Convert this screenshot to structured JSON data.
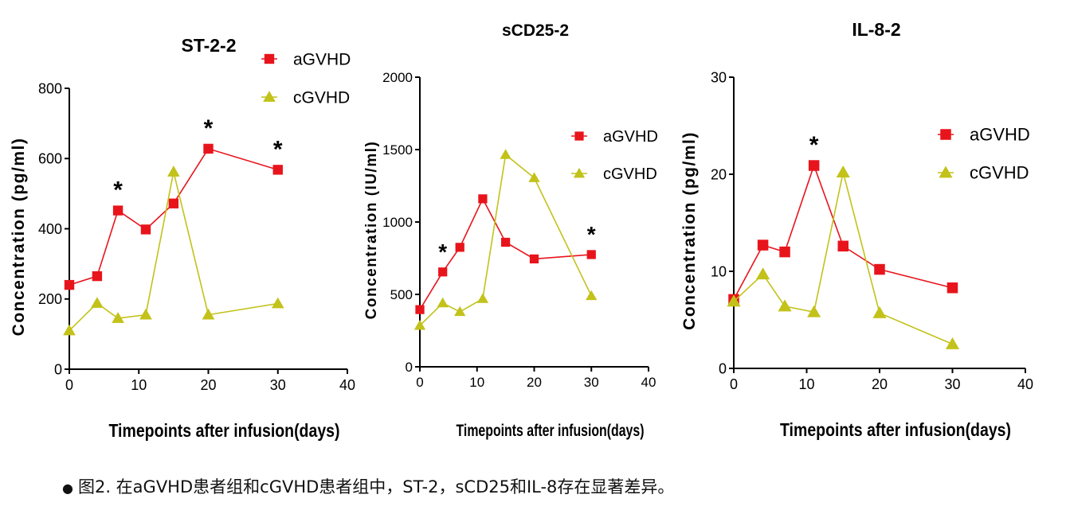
{
  "chart_data": [
    {
      "type": "line",
      "title": "ST-2-2",
      "xlabel": "Timepoints after infusion(days)",
      "ylabel": "Concentration (pg/ml)",
      "xlim": [
        0,
        40
      ],
      "ylim": [
        0,
        800
      ],
      "xticks": [
        0,
        10,
        20,
        30,
        40
      ],
      "yticks": [
        0,
        200,
        400,
        600,
        800
      ],
      "legend_position": "top-right",
      "series": [
        {
          "name": "aGVHD",
          "color": "#e8141c",
          "marker": "square",
          "x": [
            0,
            4,
            7,
            11,
            15,
            20,
            30
          ],
          "y": [
            240,
            265,
            452,
            398,
            472,
            628,
            568
          ]
        },
        {
          "name": "cGVHD",
          "color": "#c2c21a",
          "marker": "triangle",
          "x": [
            0,
            4,
            7,
            11,
            15,
            20,
            30
          ],
          "y": [
            110,
            188,
            145,
            155,
            562,
            155,
            187
          ]
        }
      ],
      "annotations": [
        {
          "text": "*",
          "x": 7,
          "y": 452
        },
        {
          "text": "*",
          "x": 20,
          "y": 628
        },
        {
          "text": "*",
          "x": 30,
          "y": 568
        }
      ]
    },
    {
      "type": "line",
      "title": "sCD25-2",
      "xlabel": "Timepoints after infusion(days)",
      "ylabel": "Concentration (IU/ml)",
      "xlim": [
        0,
        40
      ],
      "ylim": [
        0,
        2000
      ],
      "xticks": [
        0,
        10,
        20,
        30,
        40
      ],
      "yticks": [
        0,
        500,
        1000,
        1500,
        2000
      ],
      "legend_position": "right",
      "series": [
        {
          "name": "aGVHD",
          "color": "#e8141c",
          "marker": "square",
          "x": [
            0,
            4,
            7,
            11,
            15,
            20,
            30
          ],
          "y": [
            395,
            655,
            825,
            1160,
            860,
            745,
            775
          ]
        },
        {
          "name": "cGVHD",
          "color": "#c2c21a",
          "marker": "triangle",
          "x": [
            0,
            4,
            7,
            11,
            15,
            20,
            30
          ],
          "y": [
            285,
            440,
            380,
            470,
            1465,
            1305,
            490
          ]
        }
      ],
      "annotations": [
        {
          "text": "*",
          "x": 4,
          "y": 655
        },
        {
          "text": "*",
          "x": 30,
          "y": 775
        }
      ]
    },
    {
      "type": "line",
      "title": "IL-8-2",
      "xlabel": "Timepoints after infusion(days)",
      "ylabel": "Concentration (pg/ml)",
      "xlim": [
        0,
        40
      ],
      "ylim": [
        0,
        30
      ],
      "xticks": [
        0,
        10,
        20,
        30,
        40
      ],
      "yticks": [
        0,
        10,
        20,
        30
      ],
      "legend_position": "top-right",
      "series": [
        {
          "name": "aGVHD",
          "color": "#e8141c",
          "marker": "square",
          "x": [
            0,
            4,
            7,
            11,
            15,
            20,
            30
          ],
          "y": [
            7.1,
            12.7,
            12.0,
            20.9,
            12.6,
            10.2,
            8.3
          ]
        },
        {
          "name": "cGVHD",
          "color": "#c2c21a",
          "marker": "triangle",
          "x": [
            0,
            4,
            7,
            11,
            15,
            20,
            30
          ],
          "y": [
            6.9,
            9.7,
            6.4,
            5.8,
            20.2,
            5.7,
            2.5
          ]
        }
      ],
      "annotations": [
        {
          "text": "*",
          "x": 11,
          "y": 20.9
        }
      ]
    }
  ],
  "caption": {
    "bullet": "●",
    "text": "图2. 在aGVHD患者组和cGVHD患者组中，ST-2，sCD25和IL-8存在显著差异。"
  }
}
